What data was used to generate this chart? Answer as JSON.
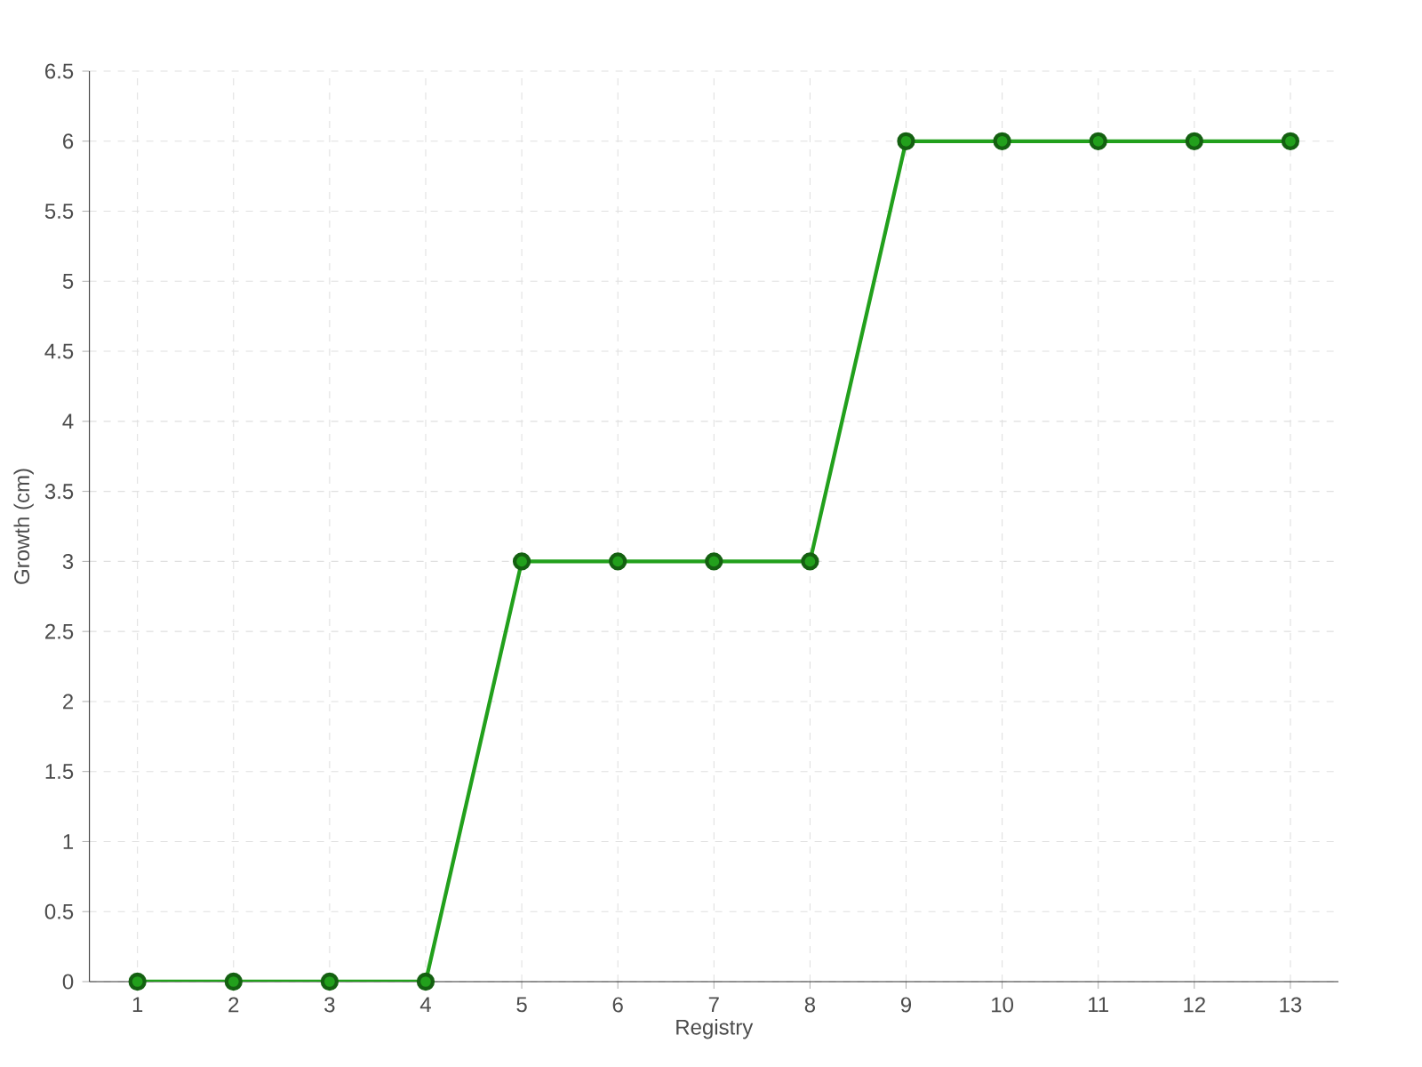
{
  "chart_data": {
    "type": "line",
    "xlabel": "Registry",
    "ylabel": "Growth (cm)",
    "categories": [
      "1",
      "2",
      "3",
      "4",
      "5",
      "6",
      "7",
      "8",
      "9",
      "10",
      "11",
      "12",
      "13"
    ],
    "series": [
      {
        "color": "#22a01c",
        "values": [
          0,
          0,
          0,
          0,
          3,
          3,
          3,
          3,
          6,
          6,
          6,
          6,
          6
        ]
      }
    ],
    "ylim": [
      0,
      6.5
    ],
    "yticks": [
      0,
      0.5,
      1,
      1.5,
      2,
      2.5,
      3,
      3.5,
      4,
      4.5,
      5,
      5.5,
      6,
      6.5
    ],
    "grid": true,
    "marker": "circle",
    "line_style": "solid"
  }
}
